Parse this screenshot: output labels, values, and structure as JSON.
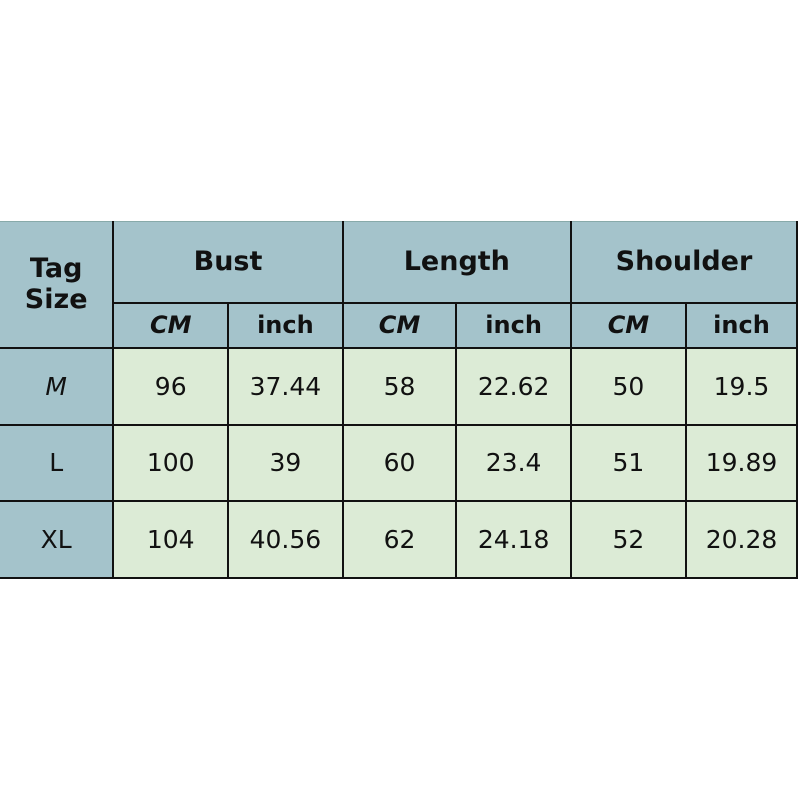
{
  "header": {
    "tag_size": "Tag Size",
    "groups": [
      "Bust",
      "Length",
      "Shoulder"
    ],
    "units": [
      "CM",
      "inch",
      "CM",
      "inch",
      "CM",
      "inch"
    ]
  },
  "header_color": "#a4c3cb",
  "cell_color": "#dcebd6",
  "rows": [
    {
      "size": "M",
      "values": [
        "96",
        "37.44",
        "58",
        "22.62",
        "50",
        "19.5"
      ]
    },
    {
      "size": "L",
      "values": [
        "100",
        "39",
        "60",
        "23.4",
        "51",
        "19.89"
      ]
    },
    {
      "size": "XL",
      "values": [
        "104",
        "40.56",
        "62",
        "24.18",
        "52",
        "20.28"
      ]
    }
  ]
}
